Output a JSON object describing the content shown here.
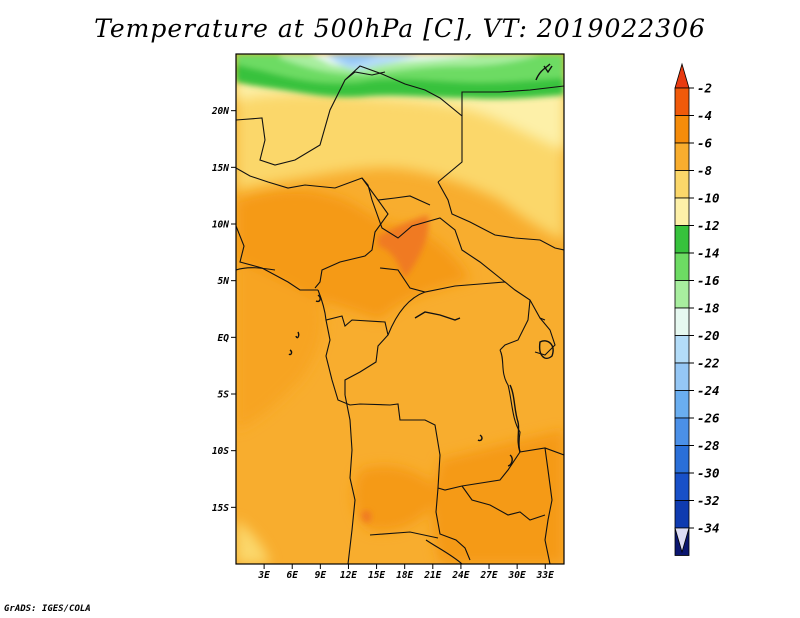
{
  "title": "Temperature at 500hPa [C], VT: 2019022306",
  "credit": "GrADS: IGES/COLA",
  "map": {
    "lon_ticks": [
      "3E",
      "6E",
      "9E",
      "12E",
      "15E",
      "18E",
      "21E",
      "24E",
      "27E",
      "30E",
      "33E"
    ],
    "lat_ticks": [
      "20N",
      "15N",
      "10N",
      "5N",
      "EQ",
      "5S",
      "10S",
      "15S"
    ],
    "lon_range": [
      0,
      35
    ],
    "lat_range": [
      -20,
      25
    ]
  },
  "colorbar": {
    "labels": [
      "-2",
      "-4",
      "-6",
      "-8",
      "-10",
      "-12",
      "-14",
      "-16",
      "-18",
      "-20",
      "-22",
      "-24",
      "-26",
      "-28",
      "-30",
      "-32",
      "-34"
    ],
    "top_arrow_color": "#e83a10",
    "bottom_arrow_color": "#dcdcf4",
    "colors": [
      "#f05a0a",
      "#f58c0a",
      "#f8ad2e",
      "#fbd76a",
      "#fdf0a8",
      "#37c23c",
      "#6ddb63",
      "#a8ee9f",
      "#e6f8f0",
      "#b3dcf8",
      "#95c7f5",
      "#6aaef0",
      "#4b90e8",
      "#2a6fd8",
      "#1850c8",
      "#0f3bb0",
      "#0b1670"
    ]
  }
}
